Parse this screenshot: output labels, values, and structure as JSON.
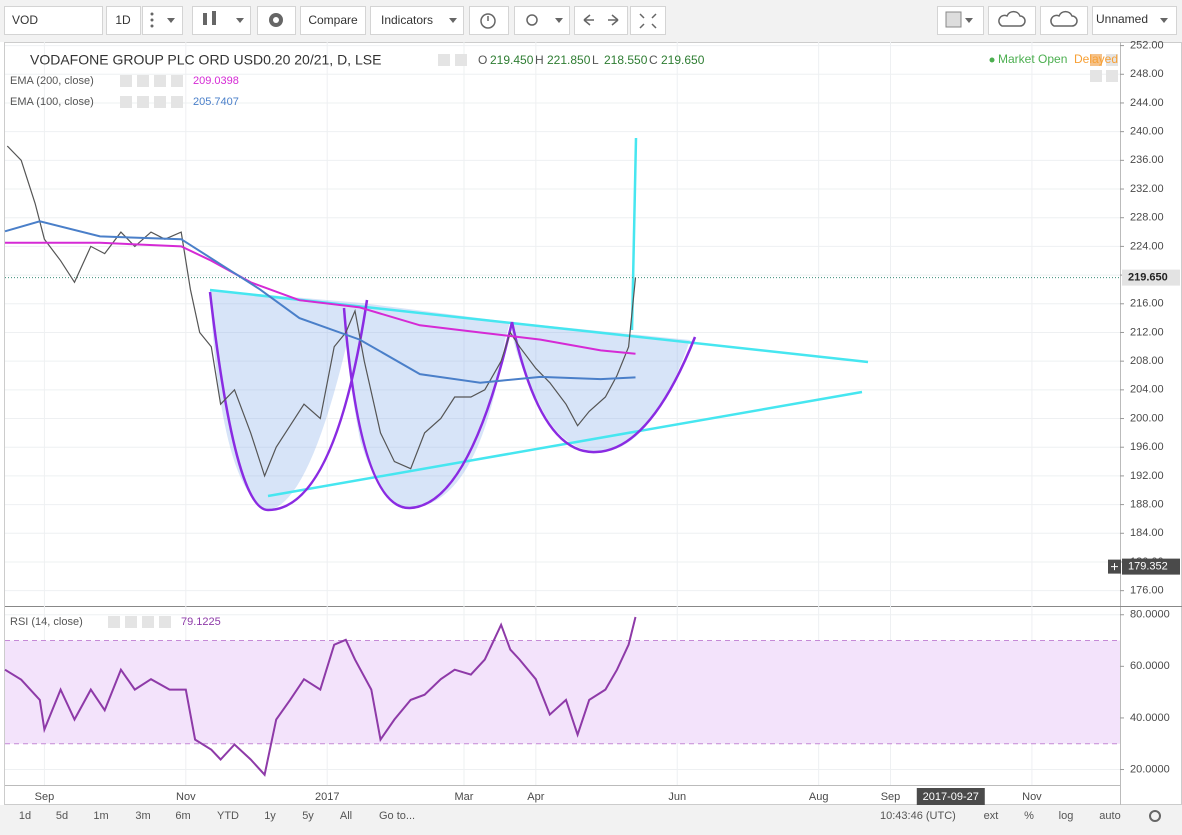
{
  "toolbar": {
    "symbol": "VOD",
    "interval": "1D",
    "compare": "Compare",
    "indicators": "Indicators",
    "layout": "Unnamed"
  },
  "status": {
    "market": "Market Open",
    "feed": "Delayed"
  },
  "bottom_bar": {
    "ranges": [
      "1d",
      "5d",
      "1m",
      "3m",
      "6m",
      "YTD",
      "1y",
      "5y",
      "All"
    ],
    "goto": "Go to...",
    "time": "10:43:46 (UTC)",
    "options": [
      "ext",
      "%",
      "log",
      "auto"
    ]
  },
  "chart_data": [
    {
      "type": "line",
      "title": "VODAFONE GROUP PLC ORD USD0.20 20/21, D, LSE",
      "ohlc": [
        {
          "name": "O",
          "value": 219.45,
          "label": "219.450"
        },
        {
          "name": "H",
          "value": 221.85,
          "label": "221.850"
        },
        {
          "name": "L",
          "value": 218.55,
          "label": "218.550"
        },
        {
          "name": "C",
          "value": 219.65,
          "label": "219.650"
        }
      ],
      "series": [
        {
          "color": "#555555",
          "x": [
            -16,
            -10,
            -4,
            0,
            7,
            13,
            20,
            26,
            33,
            39,
            46,
            52,
            59,
            63,
            67,
            72,
            76,
            82,
            89,
            95,
            100,
            106,
            112,
            119,
            125,
            130,
            134,
            138,
            145,
            151,
            158,
            164,
            171,
            177,
            184,
            190,
            197,
            201,
            205,
            212,
            218,
            225,
            230,
            235,
            242,
            247,
            252,
            255
          ],
          "values": [
            238,
            236,
            230,
            225,
            222,
            219,
            224,
            223,
            226,
            224,
            226,
            225,
            226,
            218,
            212,
            210,
            202,
            204,
            198,
            192,
            196,
            199,
            202,
            200,
            210,
            212,
            215,
            208,
            198,
            194,
            193,
            198,
            200,
            203,
            203,
            204,
            208,
            212,
            210,
            207,
            205,
            202,
            199,
            201,
            203,
            206,
            210,
            219.65
          ]
        },
        {
          "name": "EMA (200, close)",
          "color": "#d52ad5",
          "last_label": "209.0398",
          "x": [
            -17,
            24,
            59,
            72,
            89,
            110,
            136,
            162,
            188,
            214,
            240,
            255
          ],
          "values": [
            224.5,
            224.5,
            224,
            222,
            219,
            216.5,
            215.5,
            213,
            212,
            211,
            209.5,
            209.0398
          ]
        },
        {
          "name": "EMA (100, close)",
          "color": "#4a7fc9",
          "last_label": "205.7407",
          "x": [
            -17,
            -2,
            24,
            59,
            76,
            93,
            110,
            136,
            162,
            188,
            214,
            240,
            255
          ],
          "values": [
            226.1,
            227.5,
            225.4,
            225,
            221.5,
            218,
            214,
            211,
            206.2,
            205,
            205.8,
            205.5,
            205.7407
          ]
        }
      ],
      "xlim": [
        -17,
        464
      ],
      "xticks": [
        {
          "value": 0,
          "label": "Sep"
        },
        {
          "value": 61,
          "label": "Nov"
        },
        {
          "value": 122,
          "label": "2017"
        },
        {
          "value": 181,
          "label": "Mar"
        },
        {
          "value": 212,
          "label": "Apr"
        },
        {
          "value": 273,
          "label": "Jun"
        },
        {
          "value": 334,
          "label": "Aug"
        },
        {
          "value": 365,
          "label": "Sep"
        },
        {
          "value": 426,
          "label": "Nov"
        }
      ],
      "ylim": [
        174,
        252.5
      ],
      "yticks": [
        {
          "value": 176,
          "label": "176.00"
        },
        {
          "value": 180,
          "label": "180.00"
        },
        {
          "value": 184,
          "label": "184.00"
        },
        {
          "value": 188,
          "label": "188.00"
        },
        {
          "value": 192,
          "label": "192.00"
        },
        {
          "value": 196,
          "label": "196.00"
        },
        {
          "value": 200,
          "label": "200.00"
        },
        {
          "value": 204,
          "label": "204.00"
        },
        {
          "value": 208,
          "label": "208.00"
        },
        {
          "value": 212,
          "label": "212.00"
        },
        {
          "value": 216,
          "label": "216.00"
        },
        {
          "value": 220,
          "label": "220.00"
        },
        {
          "value": 224,
          "label": "224.00"
        },
        {
          "value": 228,
          "label": "228.00"
        },
        {
          "value": 232,
          "label": "232.00"
        },
        {
          "value": 236,
          "label": "236.00"
        },
        {
          "value": 240,
          "label": "240.00"
        },
        {
          "value": 244,
          "label": "244.00"
        },
        {
          "value": 248,
          "label": "248.00"
        },
        {
          "value": 252,
          "label": "252.00"
        }
      ],
      "price_line": {
        "value": 219.65,
        "label": "219.650"
      },
      "crosshair_y": {
        "value": 179.352,
        "label": "179.352"
      },
      "crosshair_x": {
        "value": 391,
        "label": "2017-09-27"
      },
      "grid": true
    },
    {
      "type": "line",
      "series": [
        {
          "name": "RSI (14, close)",
          "color": "#8e3aa8",
          "last_label": "79.1225",
          "x": [
            -17,
            -10,
            -2,
            0,
            7,
            13,
            20,
            26,
            33,
            39,
            46,
            54,
            61,
            65,
            72,
            76,
            82,
            89,
            95,
            100,
            106,
            112,
            119,
            125,
            130,
            134,
            141,
            145,
            151,
            158,
            164,
            171,
            177,
            184,
            190,
            197,
            201,
            205,
            212,
            218,
            225,
            230,
            235,
            242,
            247,
            252,
            255
          ],
          "values": [
            58.7,
            54.8,
            47,
            35.5,
            51,
            39.4,
            51,
            43,
            58.7,
            51,
            55,
            51,
            51,
            31.6,
            27.7,
            23.9,
            29.7,
            23.9,
            18,
            39.4,
            47,
            55,
            51,
            68.4,
            70.3,
            62.6,
            51,
            31.6,
            39.4,
            47,
            49,
            55,
            58.7,
            56.8,
            62.6,
            76.1,
            66.5,
            62.6,
            55,
            41.3,
            47,
            33.5,
            47,
            51,
            58.7,
            68.4,
            79.1225
          ]
        }
      ],
      "band": [
        30,
        70
      ],
      "xlim": [
        -17,
        464
      ],
      "ylim": [
        14,
        83
      ],
      "yticks": [
        {
          "value": 20,
          "label": "20.0000"
        },
        {
          "value": 40,
          "label": "40.0000"
        },
        {
          "value": 60,
          "label": "60.0000"
        },
        {
          "value": 80,
          "label": "80.0000"
        }
      ],
      "grid": true
    }
  ]
}
